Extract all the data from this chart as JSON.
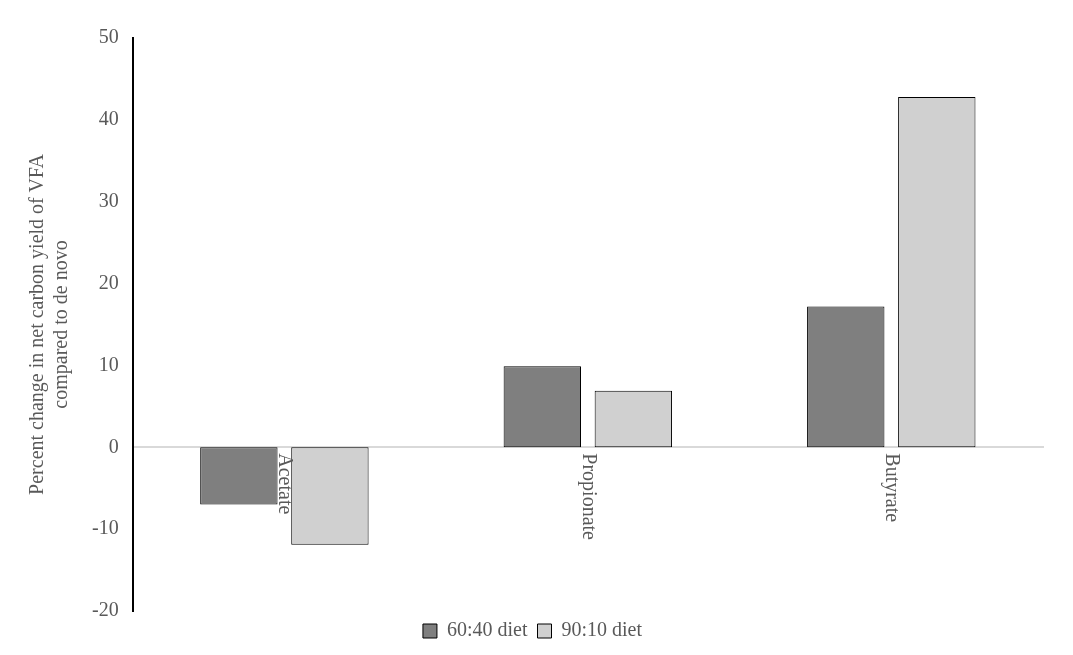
{
  "chart_data": {
    "type": "bar",
    "ylabel": "Percent change in net carbon yield of VFA compared to de novo",
    "categories": [
      "Acetate",
      "Propionate",
      "Butyrate"
    ],
    "series": [
      {
        "name": "60:40 diet",
        "color": "#7f7f7f",
        "values": [
          -7.0,
          9.9,
          17.2
        ]
      },
      {
        "name": "90:10 diet",
        "color": "#d0d0d0",
        "values": [
          -11.9,
          6.9,
          42.8
        ]
      }
    ],
    "ylim": [
      -20,
      50
    ],
    "yticks": [
      -20,
      -10,
      0,
      10,
      20,
      30,
      40,
      50
    ],
    "grid": false,
    "legend": "bottom"
  }
}
